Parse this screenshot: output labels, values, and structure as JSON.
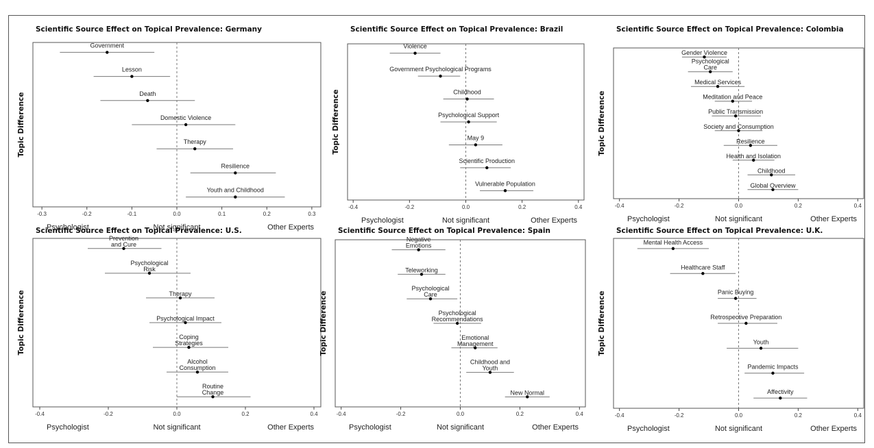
{
  "ylabel": "Topic Difference",
  "bottom_labels": [
    "Psychologist",
    "Not significant",
    "Other Experts"
  ],
  "colors": {
    "point": "#000000",
    "ci": "#777777",
    "zero_line": "#777777",
    "frame": "#555555"
  },
  "chart_data": [
    {
      "type": "scatter",
      "title": "Scientific Source Effect on Topical Prevalence: Germany",
      "xlim": [
        -0.32,
        0.32
      ],
      "xticks": [
        -0.3,
        -0.2,
        -0.1,
        0.0,
        0.1,
        0.2,
        0.3
      ],
      "xtick_labels": [
        "-0.3",
        "-0.2",
        "-0.1",
        "0.0",
        "0.1",
        "0.2",
        "0.3"
      ],
      "zero_line": true,
      "grid": false,
      "points": [
        {
          "label": [
            "Government"
          ],
          "estimate": -0.155,
          "ci": [
            -0.26,
            -0.05
          ]
        },
        {
          "label": [
            "Lesson"
          ],
          "estimate": -0.1,
          "ci": [
            -0.185,
            -0.015
          ]
        },
        {
          "label": [
            "Death"
          ],
          "estimate": -0.065,
          "ci": [
            -0.17,
            0.04
          ]
        },
        {
          "label": [
            "Domestic Violence"
          ],
          "estimate": 0.02,
          "ci": [
            -0.1,
            0.13
          ]
        },
        {
          "label": [
            "Therapy"
          ],
          "estimate": 0.04,
          "ci": [
            -0.045,
            0.125
          ]
        },
        {
          "label": [
            "Resilience"
          ],
          "estimate": 0.13,
          "ci": [
            0.03,
            0.22
          ]
        },
        {
          "label": [
            "Youth and Childhood"
          ],
          "estimate": 0.13,
          "ci": [
            0.02,
            0.24
          ]
        }
      ]
    },
    {
      "type": "scatter",
      "title": "Scientific Source Effect on Topical Prevalence: Brazil",
      "xlim": [
        -0.42,
        0.42
      ],
      "xticks": [
        -0.4,
        -0.2,
        0.0,
        0.2,
        0.4
      ],
      "xtick_labels": [
        "-0.4",
        "-0.2",
        "0.0",
        "0.2",
        "0.4"
      ],
      "zero_line": true,
      "grid": false,
      "points": [
        {
          "label": [
            "Violence"
          ],
          "estimate": -0.18,
          "ci": [
            -0.27,
            -0.09
          ]
        },
        {
          "label": [
            "Government Psychological Programs"
          ],
          "estimate": -0.09,
          "ci": [
            -0.17,
            -0.02
          ]
        },
        {
          "label": [
            "Childhood"
          ],
          "estimate": 0.005,
          "ci": [
            -0.08,
            0.1
          ]
        },
        {
          "label": [
            "Psychological Support"
          ],
          "estimate": 0.01,
          "ci": [
            -0.09,
            0.11
          ]
        },
        {
          "label": [
            "May 9"
          ],
          "estimate": 0.035,
          "ci": [
            -0.06,
            0.13
          ]
        },
        {
          "label": [
            "Scientific Production"
          ],
          "estimate": 0.075,
          "ci": [
            -0.02,
            0.16
          ]
        },
        {
          "label": [
            "Vulnerable Population"
          ],
          "estimate": 0.14,
          "ci": [
            0.05,
            0.24
          ]
        }
      ]
    },
    {
      "type": "scatter",
      "title": "Scientific Source Effect on Topical Prevalence: Colombia",
      "xlim": [
        -0.42,
        0.42
      ],
      "xticks": [
        -0.4,
        -0.2,
        0.0,
        0.2,
        0.4
      ],
      "xtick_labels": [
        "-0.4",
        "-0.2",
        "0.0",
        "0.2",
        "0.4"
      ],
      "zero_line": true,
      "grid": false,
      "points": [
        {
          "label": [
            "Gender Violence"
          ],
          "estimate": -0.115,
          "ci": [
            -0.19,
            -0.04
          ]
        },
        {
          "label": [
            "Psychological",
            "Care"
          ],
          "estimate": -0.095,
          "ci": [
            -0.17,
            -0.02
          ]
        },
        {
          "label": [
            "Medical Services"
          ],
          "estimate": -0.07,
          "ci": [
            -0.16,
            0.02
          ]
        },
        {
          "label": [
            "Meditation and Peace"
          ],
          "estimate": -0.02,
          "ci": [
            -0.08,
            0.045
          ]
        },
        {
          "label": [
            "Public Transmission"
          ],
          "estimate": -0.01,
          "ci": [
            -0.09,
            0.075
          ]
        },
        {
          "label": [
            "Society and Consumption"
          ],
          "estimate": 0.0,
          "ci": [
            -0.08,
            0.08
          ]
        },
        {
          "label": [
            "Resilience"
          ],
          "estimate": 0.04,
          "ci": [
            -0.05,
            0.13
          ]
        },
        {
          "label": [
            "Health and Isolation"
          ],
          "estimate": 0.05,
          "ci": [
            -0.02,
            0.12
          ]
        },
        {
          "label": [
            "Childhood"
          ],
          "estimate": 0.11,
          "ci": [
            0.03,
            0.19
          ]
        },
        {
          "label": [
            "Global Overview"
          ],
          "estimate": 0.115,
          "ci": [
            0.03,
            0.2
          ]
        }
      ]
    },
    {
      "type": "scatter",
      "title": "Scientific Source Effect on Topical Prevalence: U.S.",
      "xlim": [
        -0.42,
        0.42
      ],
      "xticks": [
        -0.4,
        -0.2,
        0.0,
        0.2,
        0.4
      ],
      "xtick_labels": [
        "-0.4",
        "-0.2",
        "0.0",
        "0.2",
        "0.4"
      ],
      "zero_line": true,
      "grid": false,
      "points": [
        {
          "label": [
            "Prevention",
            "and Cure"
          ],
          "estimate": -0.155,
          "ci": [
            -0.26,
            -0.045
          ]
        },
        {
          "label": [
            "Psychological",
            "Risk"
          ],
          "estimate": -0.08,
          "ci": [
            -0.21,
            0.04
          ]
        },
        {
          "label": [
            "Therapy"
          ],
          "estimate": 0.01,
          "ci": [
            -0.09,
            0.11
          ]
        },
        {
          "label": [
            "Psychological Impact"
          ],
          "estimate": 0.025,
          "ci": [
            -0.08,
            0.13
          ]
        },
        {
          "label": [
            "Coping",
            "Strategies"
          ],
          "estimate": 0.035,
          "ci": [
            -0.07,
            0.15
          ]
        },
        {
          "label": [
            "Alcohol",
            "Consumption"
          ],
          "estimate": 0.06,
          "ci": [
            -0.03,
            0.15
          ]
        },
        {
          "label": [
            "Routine",
            "Change"
          ],
          "estimate": 0.105,
          "ci": [
            0.0,
            0.215
          ]
        }
      ]
    },
    {
      "type": "scatter",
      "title": "Scientific Source Effect on Topical Prevalence: Spain",
      "xlim": [
        -0.42,
        0.42
      ],
      "xticks": [
        -0.4,
        -0.2,
        0.0,
        0.2,
        0.4
      ],
      "xtick_labels": [
        "-0.4",
        "-0.2",
        "0.0",
        "0.2",
        "0.4"
      ],
      "zero_line": true,
      "grid": false,
      "points": [
        {
          "label": [
            "Negative",
            "Emotions"
          ],
          "estimate": -0.14,
          "ci": [
            -0.23,
            -0.05
          ]
        },
        {
          "label": [
            "Teleworking"
          ],
          "estimate": -0.13,
          "ci": [
            -0.21,
            -0.05
          ]
        },
        {
          "label": [
            "Psychological",
            "Care"
          ],
          "estimate": -0.1,
          "ci": [
            -0.18,
            -0.01
          ]
        },
        {
          "label": [
            "Psychological",
            "Recommendations"
          ],
          "estimate": -0.01,
          "ci": [
            -0.09,
            0.07
          ]
        },
        {
          "label": [
            "Emotional",
            "Management"
          ],
          "estimate": 0.05,
          "ci": [
            -0.03,
            0.125
          ]
        },
        {
          "label": [
            "Childhood and",
            "Youth"
          ],
          "estimate": 0.1,
          "ci": [
            0.02,
            0.18
          ]
        },
        {
          "label": [
            "New Normal"
          ],
          "estimate": 0.225,
          "ci": [
            0.15,
            0.3
          ]
        }
      ]
    },
    {
      "type": "scatter",
      "title": "Scientific Source Effect on Topical Prevalence: U.K.",
      "xlim": [
        -0.42,
        0.42
      ],
      "xticks": [
        -0.4,
        -0.2,
        0.0,
        0.2,
        0.4
      ],
      "xtick_labels": [
        "-0.4",
        "-0.2",
        "0.0",
        "0.2",
        "0.4"
      ],
      "zero_line": true,
      "grid": false,
      "points": [
        {
          "label": [
            "Mental Health Access"
          ],
          "estimate": -0.22,
          "ci": [
            -0.34,
            -0.1
          ]
        },
        {
          "label": [
            "Healthcare Staff"
          ],
          "estimate": -0.12,
          "ci": [
            -0.23,
            -0.01
          ]
        },
        {
          "label": [
            "Panic Buying"
          ],
          "estimate": -0.01,
          "ci": [
            -0.07,
            0.06
          ]
        },
        {
          "label": [
            "Retrospective Preparation"
          ],
          "estimate": 0.025,
          "ci": [
            -0.07,
            0.13
          ]
        },
        {
          "label": [
            "Youth"
          ],
          "estimate": 0.075,
          "ci": [
            -0.04,
            0.2
          ]
        },
        {
          "label": [
            "Pandemic Impacts"
          ],
          "estimate": 0.115,
          "ci": [
            0.02,
            0.22
          ]
        },
        {
          "label": [
            "Affectivity"
          ],
          "estimate": 0.14,
          "ci": [
            0.05,
            0.23
          ]
        }
      ]
    }
  ]
}
